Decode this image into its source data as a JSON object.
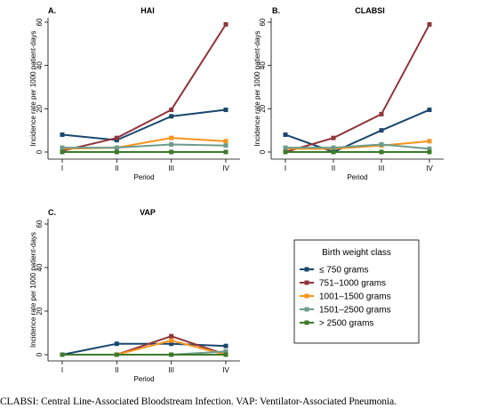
{
  "caption": "CLABSI: Central Line-Associated Bloodstream Infection. VAP: Ventilator-Associated Pneumonia.",
  "legend": {
    "title": "Birth weight class",
    "placement": "right",
    "entries": [
      {
        "label": "≤ 750 grams",
        "color": "#1a476f"
      },
      {
        "label": "751–1000 grams",
        "color": "#90353b"
      },
      {
        "label": "1001–1500 grams",
        "color": "#f7941d"
      },
      {
        "label": "1501–2500 grams",
        "color": "#6e9c8c"
      },
      {
        "label": "> 2500 grams",
        "color": "#3d7a2a"
      }
    ]
  },
  "chart_data": [
    {
      "type": "line",
      "letter": "A.",
      "title": "HAI",
      "xlabel": "Period",
      "ylabel": "Incidence rate per 1000 patient-days",
      "categories": [
        "I",
        "II",
        "III",
        "IV"
      ],
      "yticks": [
        0,
        20,
        40,
        60
      ],
      "ylim": [
        -2,
        62
      ],
      "grid": false,
      "series": [
        {
          "name": "≤ 750 grams",
          "color": "#1a476f",
          "values": [
            8,
            5.5,
            16.5,
            19.5
          ]
        },
        {
          "name": "751–1000 grams",
          "color": "#90353b",
          "values": [
            0.5,
            6.5,
            19.5,
            59
          ]
        },
        {
          "name": "1001–1500 grams",
          "color": "#f7941d",
          "values": [
            1.5,
            2,
            6.5,
            5
          ]
        },
        {
          "name": "1501–2500 grams",
          "color": "#6e9c8c",
          "values": [
            2,
            2,
            3.5,
            3
          ]
        },
        {
          "name": "> 2500 grams",
          "color": "#3d7a2a",
          "values": [
            0,
            0,
            0,
            0
          ]
        }
      ]
    },
    {
      "type": "line",
      "letter": "B.",
      "title": "CLABSI",
      "xlabel": "Period",
      "ylabel": "Incidence rate per 1000 patient-days",
      "categories": [
        "I",
        "II",
        "III",
        "IV"
      ],
      "yticks": [
        0,
        20,
        40,
        60
      ],
      "ylim": [
        -2,
        62
      ],
      "grid": false,
      "series": [
        {
          "name": "≤ 750 grams",
          "color": "#1a476f",
          "values": [
            8,
            0,
            10,
            19.5
          ]
        },
        {
          "name": "751–1000 grams",
          "color": "#90353b",
          "values": [
            0,
            6.5,
            17.5,
            59
          ]
        },
        {
          "name": "1001–1500 grams",
          "color": "#f7941d",
          "values": [
            1.5,
            1.5,
            3,
            5
          ]
        },
        {
          "name": "1501–2500 grams",
          "color": "#6e9c8c",
          "values": [
            2,
            2,
            3.5,
            1.5
          ]
        },
        {
          "name": "> 2500 grams",
          "color": "#3d7a2a",
          "values": [
            0,
            0,
            0,
            0
          ]
        }
      ]
    },
    {
      "type": "line",
      "letter": "C.",
      "title": "VAP",
      "xlabel": "Period",
      "ylabel": "Incidence rate per 1000 patient-days",
      "categories": [
        "I",
        "II",
        "III",
        "IV"
      ],
      "yticks": [
        0,
        20,
        40,
        60
      ],
      "ylim": [
        -2,
        62
      ],
      "grid": false,
      "series": [
        {
          "name": "≤ 750 grams",
          "color": "#1a476f",
          "values": [
            0,
            5,
            5,
            4
          ]
        },
        {
          "name": "751–1000 grams",
          "color": "#90353b",
          "values": [
            0,
            0,
            8.5,
            0
          ]
        },
        {
          "name": "1001–1500 grams",
          "color": "#f7941d",
          "values": [
            0,
            0,
            6.5,
            0
          ]
        },
        {
          "name": "1501–2500 grams",
          "color": "#6e9c8c",
          "values": [
            0,
            0,
            0,
            1.5
          ]
        },
        {
          "name": "> 2500 grams",
          "color": "#3d7a2a",
          "values": [
            0,
            0,
            0,
            0
          ]
        }
      ]
    }
  ]
}
